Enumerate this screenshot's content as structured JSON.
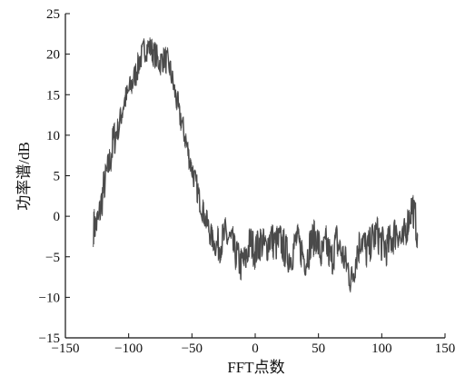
{
  "chart_data": {
    "type": "line",
    "title": "",
    "xlabel": "FFT点数",
    "ylabel": "功率谱/dB",
    "xlim": [
      -150,
      150
    ],
    "ylim": [
      -15,
      25
    ],
    "xticks": [
      -150,
      -100,
      -50,
      0,
      50,
      100,
      150
    ],
    "yticks": [
      -15,
      -10,
      -5,
      0,
      5,
      10,
      15,
      20,
      25
    ],
    "xtick_labels": [
      "−150",
      "−100",
      "−50",
      "0",
      "50",
      "100",
      "150"
    ],
    "ytick_labels": [
      "−15",
      "−10",
      "−5",
      "0",
      "5",
      "10",
      "15",
      "20",
      "25"
    ],
    "grid": false,
    "legend": "none",
    "line_color": "#4a4a4a",
    "series": [
      {
        "x": [
          -128,
          -124,
          -120,
          -116,
          -112,
          -108,
          -104,
          -100,
          -96,
          -92,
          -88,
          -84,
          -80,
          -76,
          -72,
          -68,
          -64,
          -60,
          -56,
          -52,
          -48,
          -44,
          -40,
          -36,
          -32,
          -28,
          -24,
          -20,
          -16,
          -12,
          -8,
          -4,
          0,
          4,
          8,
          12,
          16,
          20,
          24,
          28,
          32,
          36,
          40,
          44,
          48,
          52,
          56,
          60,
          64,
          68,
          72,
          76,
          80,
          84,
          88,
          92,
          96,
          100,
          104,
          108,
          112,
          116,
          120,
          124,
          128
        ],
        "y": [
          -1.5,
          -0.5,
          3.5,
          6,
          9.5,
          11,
          14,
          15.5,
          17,
          19,
          20.5,
          21,
          20,
          19,
          19.5,
          18.5,
          15.5,
          12.5,
          10,
          7,
          4.5,
          2,
          0,
          -2,
          -3.5,
          -3.5,
          -2.5,
          -3,
          -4.5,
          -6,
          -5.5,
          -3,
          -4.5,
          -3,
          -4,
          -2.5,
          -3.5,
          -3,
          -4.5,
          -5,
          -3,
          -4,
          -5.5,
          -3,
          -2.5,
          -5,
          -3.5,
          -5.5,
          -3,
          -4.5,
          -6,
          -8,
          -4.5,
          -2.5,
          -4.5,
          -3,
          -2,
          -3.5,
          -4,
          -2.5,
          -1.5,
          -3.5,
          -1,
          1.5,
          -2
        ]
      }
    ]
  }
}
